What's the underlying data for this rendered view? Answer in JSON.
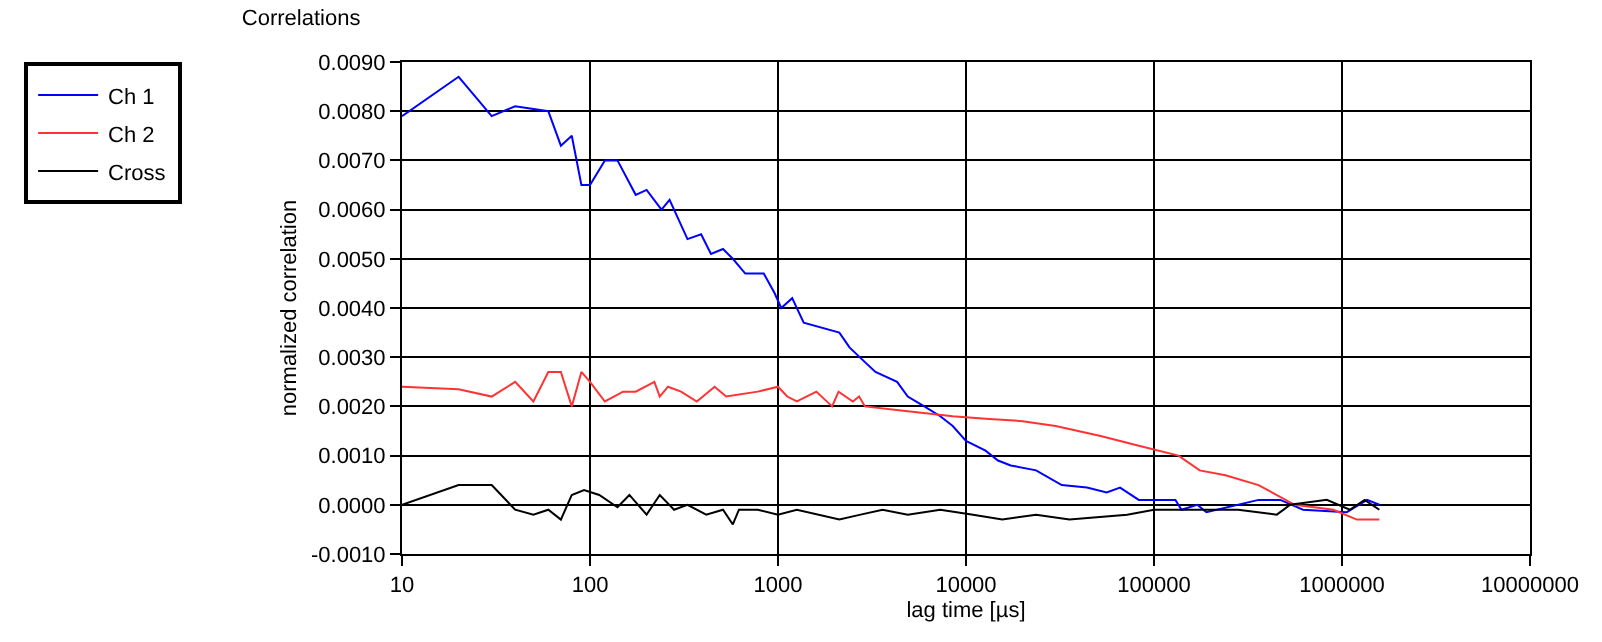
{
  "chart_data": {
    "type": "line",
    "title": "Correlations",
    "xlabel": "lag time [µs]",
    "ylabel": "normalized correlation",
    "log": "x",
    "grid": true,
    "legend": "top left",
    "marker": "none",
    "line_style": "solid",
    "xlim": [
      10,
      10000000
    ],
    "xticks": [
      10,
      100,
      1000,
      10000,
      100000,
      1000000,
      10000000
    ],
    "ylim": [
      -0.001,
      0.009
    ],
    "yticks": [
      {
        "value": -0.001,
        "label": "-0.0010"
      },
      {
        "value": 0,
        "label": "0.0000"
      },
      {
        "value": 0.001,
        "label": "0.0010"
      },
      {
        "value": 0.002,
        "label": "0.0020"
      },
      {
        "value": 0.003,
        "label": "0.0030"
      },
      {
        "value": 0.004,
        "label": "0.0040"
      },
      {
        "value": 0.005,
        "label": "0.0050"
      },
      {
        "value": 0.006,
        "label": "0.0060"
      },
      {
        "value": 0.007,
        "label": "0.0070"
      },
      {
        "value": 0.008,
        "label": "0.0080"
      },
      {
        "value": 0.009,
        "label": "0.0090"
      }
    ],
    "series": [
      {
        "name": "Ch 1",
        "color": "#0000ff",
        "x": [
          10,
          20,
          30,
          40,
          60,
          70,
          80,
          90,
          100,
          120,
          140,
          175,
          200,
          240,
          265,
          330,
          390,
          440,
          510,
          575,
          670,
          840,
          960,
          1040,
          1190,
          1370,
          2120,
          2400,
          2900,
          3300,
          4300,
          4900,
          6000,
          7300,
          8500,
          10000,
          12700,
          14800,
          17300,
          23600,
          32300,
          44000,
          56000,
          66000,
          83000,
          100000,
          130000,
          140000,
          170000,
          190000,
          360000,
          470000,
          620000,
          1060000,
          1360000,
          1580000
        ],
        "values": [
          0.0079,
          0.0087,
          0.0079,
          0.0081,
          0.008,
          0.0073,
          0.0075,
          0.0065,
          0.0065,
          0.007,
          0.007,
          0.0063,
          0.0064,
          0.006,
          0.0062,
          0.0054,
          0.0055,
          0.0051,
          0.0052,
          0.005,
          0.0047,
          0.0047,
          0.0043,
          0.004,
          0.0042,
          0.0037,
          0.0035,
          0.0032,
          0.0029,
          0.0027,
          0.0025,
          0.0022,
          0.002,
          0.0018,
          0.0016,
          0.0013,
          0.0011,
          0.0009,
          0.0008,
          0.0007,
          0.0004,
          0.00035,
          0.00025,
          0.00035,
          0.0001,
          0.0001,
          0.0001,
          -0.0001,
          0.0,
          -0.00015,
          0.0001,
          0.0001,
          -0.0001,
          -0.00015,
          0.0001,
          0.0
        ]
      },
      {
        "name": "Ch 2",
        "color": "#ff3333",
        "x": [
          10,
          20,
          30,
          40,
          50,
          60,
          70,
          80,
          90,
          100,
          120,
          150,
          175,
          220,
          235,
          260,
          305,
          370,
          460,
          530,
          780,
          1000,
          1120,
          1260,
          1600,
          1940,
          2100,
          2500,
          2700,
          2900,
          4900,
          8500,
          12700,
          20000,
          30000,
          52000,
          83000,
          135000,
          175000,
          240000,
          360000,
          560000,
          900000,
          1200000,
          1450000,
          1580000
        ],
        "values": [
          0.0024,
          0.00235,
          0.0022,
          0.0025,
          0.0021,
          0.0027,
          0.0027,
          0.002,
          0.0027,
          0.0025,
          0.0021,
          0.0023,
          0.0023,
          0.0025,
          0.0022,
          0.0024,
          0.0023,
          0.0021,
          0.0024,
          0.0022,
          0.0023,
          0.0024,
          0.0022,
          0.0021,
          0.0023,
          0.002,
          0.0023,
          0.0021,
          0.0022,
          0.002,
          0.0019,
          0.0018,
          0.00175,
          0.0017,
          0.0016,
          0.0014,
          0.0012,
          0.001,
          0.0007,
          0.0006,
          0.0004,
          0.0,
          -0.0001,
          -0.0003,
          -0.0003,
          -0.0003
        ]
      },
      {
        "name": "Cross",
        "color": "#000000",
        "x": [
          10,
          20,
          30,
          40,
          50,
          60,
          70,
          80,
          93,
          112,
          140,
          162,
          200,
          235,
          280,
          330,
          415,
          510,
          575,
          620,
          780,
          1000,
          1260,
          2120,
          2750,
          3600,
          4900,
          7300,
          10900,
          15600,
          23600,
          35500,
          72000,
          100000,
          155000,
          280000,
          450000,
          530000,
          830000,
          1100000,
          1320000,
          1580000
        ],
        "values": [
          0.0,
          0.0004,
          0.0004,
          -0.0001,
          -0.0002,
          -0.0001,
          -0.0003,
          0.0002,
          0.0003,
          0.0002,
          -5e-05,
          0.0002,
          -0.0002,
          0.0002,
          -0.0001,
          0.0,
          -0.0002,
          -0.0001,
          -0.0004,
          -0.0001,
          -0.0001,
          -0.0002,
          -0.0001,
          -0.0003,
          -0.0002,
          -0.0001,
          -0.0002,
          -0.0001,
          -0.0002,
          -0.0003,
          -0.0002,
          -0.0003,
          -0.0002,
          -0.0001,
          -0.0001,
          -0.0001,
          -0.0002,
          0.0,
          0.0001,
          -0.0001,
          0.0001,
          -0.0001
        ]
      }
    ]
  }
}
